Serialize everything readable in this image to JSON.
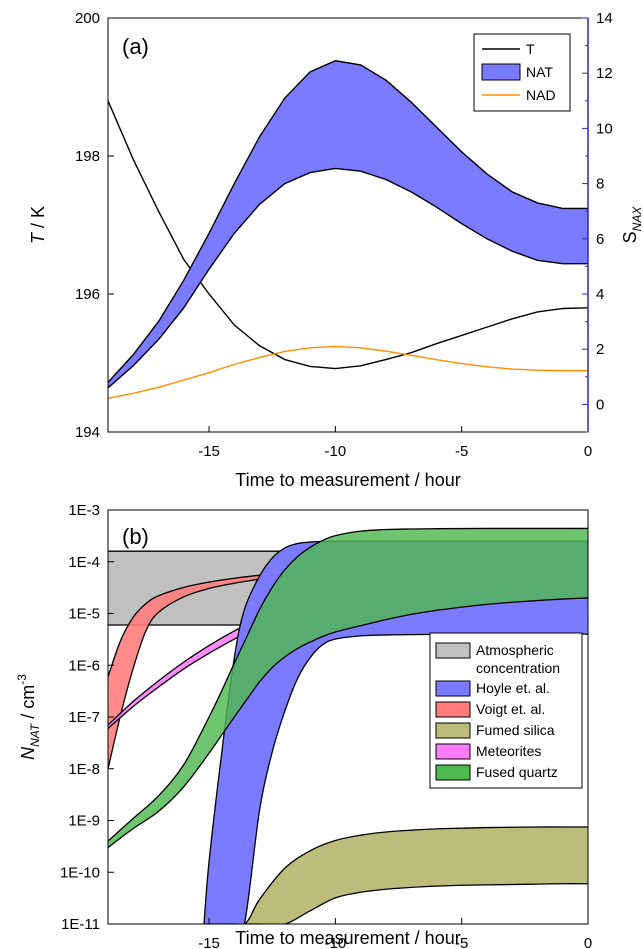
{
  "chart_data": [
    {
      "type": "line",
      "panel_label": "(a)",
      "xlabel": "Time to measurement / hour",
      "ylabel_left": {
        "italic": "T",
        "rest": " / K"
      },
      "ylabel_right": {
        "main": "S",
        "sub": "NAX"
      },
      "xlim": [
        -19,
        0
      ],
      "ylim_left": [
        194,
        200
      ],
      "ylim_right": [
        -1,
        14
      ],
      "x_ticks": [
        -15,
        -10,
        -5,
        0
      ],
      "x_tick_labels": [
        "-15",
        "-10",
        "-5",
        "0"
      ],
      "y_left_ticks": [
        194,
        196,
        198,
        200
      ],
      "y_left_tick_labels": [
        "194",
        "196",
        "198",
        "200"
      ],
      "y_right_ticks": [
        0,
        2,
        4,
        6,
        8,
        10,
        12,
        14
      ],
      "y_right_tick_labels": [
        "0",
        "2",
        "4",
        "6",
        "8",
        "10",
        "12",
        "14"
      ],
      "legend_position": "top-right",
      "legend": [
        {
          "label": "T",
          "kind": "line",
          "color": "#000000"
        },
        {
          "label": "NAT",
          "kind": "patch",
          "color": "#7b7bff"
        },
        {
          "label": "NAD",
          "kind": "line",
          "color": "#ff8c00"
        }
      ],
      "series": [
        {
          "name": "T",
          "axis": "left",
          "color": "#000000",
          "x": [
            -19,
            -18,
            -17,
            -16,
            -15,
            -14,
            -13,
            -12,
            -11,
            -10,
            -9,
            -8,
            -7,
            -6,
            -5,
            -4,
            -3,
            -2,
            -1,
            0
          ],
          "y": [
            198.8,
            197.95,
            197.2,
            196.5,
            196.0,
            195.55,
            195.25,
            195.05,
            194.95,
            194.92,
            194.96,
            195.05,
            195.15,
            195.28,
            195.4,
            195.52,
            195.64,
            195.74,
            195.79,
            195.8
          ]
        },
        {
          "name": "NAT",
          "axis": "right",
          "kind": "band",
          "color": "#7b7bff",
          "x": [
            -19,
            -18,
            -17,
            -16,
            -15,
            -14,
            -13,
            -12,
            -11,
            -10,
            -9,
            -8,
            -7,
            -6,
            -5,
            -4,
            -3,
            -2,
            -1,
            0
          ],
          "lower": [
            0.6,
            1.4,
            2.35,
            3.5,
            4.9,
            6.2,
            7.25,
            8.0,
            8.4,
            8.55,
            8.45,
            8.15,
            7.7,
            7.15,
            6.55,
            6.0,
            5.55,
            5.22,
            5.1,
            5.1
          ],
          "upper": [
            0.8,
            1.8,
            3.0,
            4.5,
            6.2,
            8.0,
            9.7,
            11.1,
            12.05,
            12.45,
            12.3,
            11.75,
            10.95,
            10.05,
            9.15,
            8.35,
            7.7,
            7.3,
            7.1,
            7.1
          ]
        },
        {
          "name": "NAD",
          "axis": "right",
          "color": "#ff8c00",
          "x": [
            -19,
            -18,
            -17,
            -16,
            -15,
            -14,
            -13,
            -12,
            -11,
            -10,
            -9,
            -8,
            -7,
            -6,
            -5,
            -4,
            -3,
            -2,
            -1,
            0
          ],
          "y": [
            0.22,
            0.4,
            0.62,
            0.88,
            1.15,
            1.45,
            1.7,
            1.92,
            2.05,
            2.1,
            2.05,
            1.93,
            1.78,
            1.62,
            1.48,
            1.36,
            1.28,
            1.24,
            1.22,
            1.22
          ]
        }
      ]
    },
    {
      "type": "area",
      "panel_label": "(b)",
      "xlabel": "Time to measurement / hour",
      "ylabel": {
        "main": "N",
        "sub": "NAT",
        "unit": " / cm",
        "sup": "-3"
      },
      "xlim": [
        -19,
        0
      ],
      "ylim_log10": [
        -11,
        -3
      ],
      "y_scale": "log",
      "x_ticks": [
        -15,
        -10,
        -5,
        0
      ],
      "x_tick_labels": [
        "-15",
        "-10",
        "-5",
        "0"
      ],
      "y_ticks_log10": [
        -3,
        -4,
        -5,
        -6,
        -7,
        -8,
        -9,
        -10,
        -11
      ],
      "y_tick_labels": [
        "1E-3",
        "1E-4",
        "1E-5",
        "1E-6",
        "1E-7",
        "1E-8",
        "1E-9",
        "1E-10",
        "1E-11"
      ],
      "legend_position": "right",
      "legend": [
        {
          "label_lines": [
            "Atmospheric",
            "concentration"
          ],
          "color": "#c0c0c0"
        },
        {
          "label_lines": [
            "Hoyle et. al."
          ],
          "color": "#7b7bff"
        },
        {
          "label_lines": [
            "Voigt et. al."
          ],
          "color": "#ff7b7b"
        },
        {
          "label_lines": [
            "Fumed silica"
          ],
          "color": "#bdbd7b"
        },
        {
          "label_lines": [
            "Meteorites"
          ],
          "color": "#ff7bff"
        },
        {
          "label_lines": [
            "Fused quartz"
          ],
          "color": "#4fb84f"
        }
      ],
      "series": [
        {
          "name": "Atmospheric concentration",
          "color": "#c0c0c0",
          "opacity": 1,
          "x": [
            -19,
            0
          ],
          "lower": [
            6e-06,
            6e-06
          ],
          "upper": [
            0.00016,
            0.00016
          ]
        },
        {
          "name": "Fumed silica",
          "color": "#bdbd7b",
          "opacity": 1,
          "x": [
            -15.2,
            -14.5,
            -13.6,
            -13,
            -12,
            -11,
            -10,
            -9,
            -8,
            -7,
            -6,
            -5,
            -4,
            -3,
            -2,
            -1,
            0
          ],
          "lower": [
            1e-11,
            1e-11,
            1e-11,
            1e-11,
            1e-11,
            1.8e-11,
            3.2e-11,
            4.1e-11,
            4.7e-11,
            5.1e-11,
            5.4e-11,
            5.6e-11,
            5.7e-11,
            5.8e-11,
            5.9e-11,
            6e-11,
            6e-11
          ],
          "upper": [
            1e-11,
            1e-11,
            1e-11,
            3e-11,
            1.2e-10,
            2.6e-10,
            4.1e-10,
            5.2e-10,
            6e-10,
            6.5e-10,
            6.9e-10,
            7.1e-10,
            7.3e-10,
            7.4e-10,
            7.5e-10,
            7.5e-10,
            7.5e-10
          ]
        },
        {
          "name": "Voigt et. al.",
          "color": "#ff7b7b",
          "opacity": 0.88,
          "x": [
            -19,
            -18.5,
            -18,
            -17.5,
            -17,
            -16,
            -15,
            -14,
            -13,
            -12,
            -11,
            -10,
            -9,
            -8,
            -7,
            -6,
            -5,
            -4,
            -3,
            -2,
            -1,
            0
          ],
          "lower": [
            1e-08,
            1.1e-07,
            8.8e-07,
            4.6e-06,
            1.05e-05,
            2.1e-05,
            3.05e-05,
            3.85e-05,
            4.6e-05,
            5.3e-05,
            6e-05,
            6.7e-05,
            7.4e-05,
            8.1e-05,
            8.8e-05,
            9.5e-05,
            0.000102,
            0.000109,
            0.000116,
            0.000123,
            0.00013,
            0.000138
          ],
          "upper": [
            6e-07,
            3e-06,
            8.5e-06,
            1.55e-05,
            2.2e-05,
            3.2e-05,
            4.05e-05,
            4.8e-05,
            5.5e-05,
            6.2e-05,
            6.9e-05,
            7.6e-05,
            8.3e-05,
            9e-05,
            9.7e-05,
            0.000104,
            0.000111,
            0.000118,
            0.000125,
            0.000132,
            0.00014,
            0.000148
          ]
        },
        {
          "name": "Meteorites",
          "color": "#ff7bff",
          "opacity": 0.88,
          "x": [
            -19,
            -18,
            -17,
            -16,
            -15,
            -14,
            -13,
            -12,
            -11,
            -10,
            -9,
            -8,
            -7,
            -6,
            -5,
            -4,
            -3,
            -2,
            -1,
            0
          ],
          "lower": [
            6e-08,
            1.6e-07,
            3.8e-07,
            8.5e-07,
            1.7e-06,
            3.2e-06,
            5.8e-06,
            1e-05,
            1.6e-05,
            2.4e-05,
            3.3e-05,
            4.3e-05,
            5.4e-05,
            6.5e-05,
            7.6e-05,
            8.7e-05,
            9.8e-05,
            0.000109,
            0.00012,
            0.000131
          ],
          "upper": [
            7e-08,
            2e-07,
            5e-07,
            1.15e-06,
            2.4e-06,
            4.6e-06,
            8.3e-06,
            1.42e-05,
            2.25e-05,
            3.3e-05,
            4.5e-05,
            5.8e-05,
            7.1e-05,
            8.4e-05,
            9.7e-05,
            0.00011,
            0.000123,
            0.000136,
            0.000149,
            0.000162
          ]
        },
        {
          "name": "Hoyle et. al.",
          "color": "#7b7bff",
          "opacity": 1,
          "x": [
            -15.2,
            -15,
            -14.5,
            -14,
            -13.6,
            -13,
            -12.5,
            -12,
            -11.5,
            -11,
            -10.5,
            -10,
            -9,
            -8,
            -7,
            -6,
            -5,
            -4,
            -3,
            -2,
            -1,
            0
          ],
          "lower": [
            1e-11,
            1e-11,
            1e-11,
            1e-11,
            1e-11,
            1.6e-09,
            2.1e-08,
            1.3e-07,
            5.5e-07,
            1.4e-06,
            2.5e-06,
            3.2e-06,
            3.7e-06,
            3.85e-06,
            3.9e-06,
            3.95e-06,
            4e-06,
            4e-06,
            4e-06,
            4e-06,
            4e-06,
            4e-06
          ],
          "upper": [
            1e-11,
            1.6e-10,
            2e-08,
            1.4e-06,
            1.2e-05,
            5.3e-05,
            0.000118,
            0.000185,
            0.000225,
            0.00024,
            0.000248,
            0.00025,
            0.00025,
            0.00025,
            0.00025,
            0.00025,
            0.00025,
            0.00025,
            0.00025,
            0.00025,
            0.00025,
            0.00025
          ]
        },
        {
          "name": "Fused quartz",
          "color": "#4fb84f",
          "opacity": 0.82,
          "x": [
            -19,
            -18,
            -17,
            -16,
            -15,
            -14.5,
            -14,
            -13.5,
            -13,
            -12.5,
            -12,
            -11.5,
            -11,
            -10.5,
            -10,
            -9,
            -8,
            -7,
            -6,
            -5,
            -4,
            -3,
            -2,
            -1,
            0
          ],
          "lower": [
            3e-10,
            7e-10,
            1.5e-09,
            4.5e-09,
            2e-08,
            4.5e-08,
            1e-07,
            2.2e-07,
            4.8e-07,
            9e-07,
            1.45e-06,
            2.1e-06,
            2.8e-06,
            3.6e-06,
            4.4e-06,
            5.8e-06,
            7.6e-06,
            9.6e-06,
            1.15e-05,
            1.33e-05,
            1.5e-05,
            1.65e-05,
            1.78e-05,
            1.9e-05,
            2e-05
          ],
          "upper": [
            4e-10,
            1.1e-09,
            3e-09,
            1.2e-08,
            1e-07,
            3.2e-07,
            1.1e-06,
            3.6e-06,
            1.2e-05,
            3.2e-05,
            7e-05,
            0.000125,
            0.00019,
            0.00026,
            0.00032,
            0.00039,
            0.00042,
            0.00043,
            0.000435,
            0.000438,
            0.00044,
            0.00044,
            0.00044,
            0.00044,
            0.00044
          ]
        }
      ]
    }
  ]
}
